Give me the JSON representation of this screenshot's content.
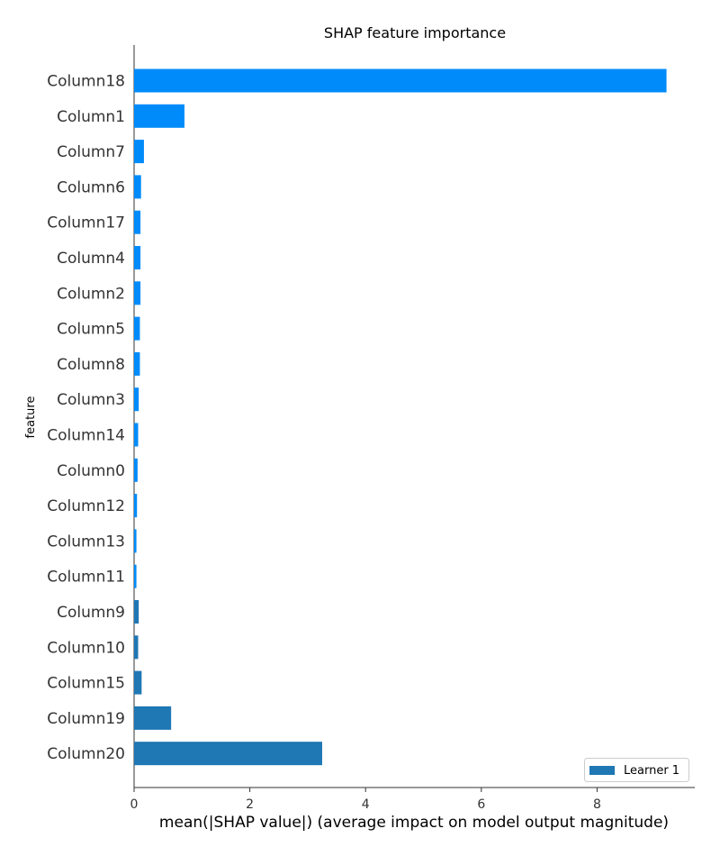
{
  "chart_data": {
    "type": "bar",
    "orientation": "horizontal",
    "title": "SHAP feature importance",
    "xlabel": "mean(|SHAP value|) (average impact on model output magnitude)",
    "ylabel": "feature",
    "xlim": [
      0,
      9.5
    ],
    "xticks": [
      "0",
      "2",
      "4",
      "6",
      "8"
    ],
    "grid": false,
    "legend": {
      "placement": "bottom-right",
      "entries": [
        {
          "label": "Learner 1",
          "color": "#1f77b4"
        }
      ]
    },
    "categories": [
      "Column18",
      "Column1",
      "Column7",
      "Column6",
      "Column17",
      "Column4",
      "Column2",
      "Column5",
      "Column8",
      "Column3",
      "Column14",
      "Column0",
      "Column12",
      "Column13",
      "Column11",
      "Column9",
      "Column10",
      "Column15",
      "Column19",
      "Column20"
    ],
    "values": [
      9.2,
      0.87,
      0.17,
      0.12,
      0.11,
      0.11,
      0.11,
      0.1,
      0.1,
      0.08,
      0.07,
      0.06,
      0.05,
      0.04,
      0.04,
      0.08,
      0.07,
      0.13,
      0.64,
      3.25
    ],
    "bar_colors": [
      "#008bfb",
      "#008bfb",
      "#008bfb",
      "#008bfb",
      "#008bfb",
      "#008bfb",
      "#008bfb",
      "#008bfb",
      "#008bfb",
      "#008bfb",
      "#008bfb",
      "#008bfb",
      "#008bfb",
      "#008bfb",
      "#008bfb",
      "#1f77b4",
      "#1f77b4",
      "#1f77b4",
      "#1f77b4",
      "#1f77b4"
    ]
  }
}
